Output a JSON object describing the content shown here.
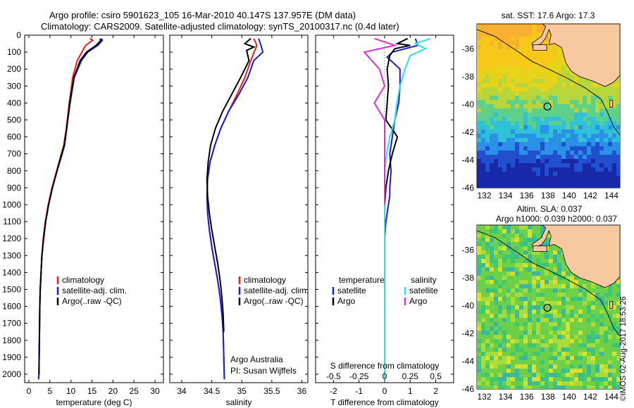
{
  "header": {
    "line1": "Argo profile: csiro 5901623_105 16-Mar-2010 40.147S 137.957E (DM data)",
    "line2": "Climatology: CARS2009. Satellite-adjusted climatology: synTS_20100317.nc (0.4d later)"
  },
  "colors": {
    "climatology": "#e8221a",
    "satellite": "#1a1ad8",
    "argo": "#000000",
    "t_satellite": "#1a1ad8",
    "t_argo": "#000000",
    "s_satellite": "#30e0e0",
    "s_argo": "#e030d0"
  },
  "depth_axis": {
    "ticks": [
      "0",
      "100",
      "200",
      "300",
      "400",
      "500",
      "600",
      "700",
      "800",
      "900",
      "1000",
      "1100",
      "1200",
      "1300",
      "1400",
      "1500",
      "1600",
      "1700",
      "1800",
      "1900",
      "2000"
    ]
  },
  "chart_data": [
    {
      "type": "line",
      "name": "temperature-profile",
      "xlabel": "temperature (deg C)",
      "xlim": [
        -1,
        32
      ],
      "ylim": [
        2050,
        0
      ],
      "xticks": [
        "0",
        "5",
        "10",
        "15",
        "20",
        "25",
        "30"
      ],
      "xtick_values": [
        0,
        5,
        10,
        15,
        20,
        25,
        30
      ],
      "legend": [
        "climatology",
        "satellite-adj. clim.",
        "Argo(..raw -QC)"
      ],
      "legend_position": "lower-middle",
      "series": [
        {
          "name": "climatology",
          "color_key": "climatology",
          "x": [
            14.5,
            15.2,
            13.5,
            12.6,
            11.5,
            10.4,
            9.6,
            8.9,
            8.3,
            7.5,
            6.6,
            5.5,
            4.6,
            3.9,
            3.4,
            3.1,
            2.9,
            2.7,
            2.6,
            2.5,
            2.4,
            2.3
          ],
          "y": [
            20,
            30,
            60,
            100,
            150,
            250,
            400,
            550,
            650,
            720,
            800,
            900,
            1000,
            1100,
            1200,
            1300,
            1400,
            1500,
            1600,
            1800,
            2000,
            2030
          ]
        },
        {
          "name": "satellite-adj. clim.",
          "color_key": "satellite",
          "x": [
            17.3,
            17.5,
            16.4,
            14.0,
            12.5,
            10.8,
            9.8,
            9.0,
            8.5,
            7.7,
            6.7,
            5.6,
            4.7,
            4.0,
            3.5,
            3.1,
            2.9,
            2.7,
            2.6,
            2.5,
            2.4,
            2.3
          ],
          "y": [
            20,
            30,
            60,
            100,
            150,
            250,
            400,
            550,
            650,
            720,
            800,
            900,
            1000,
            1100,
            1200,
            1300,
            1400,
            1500,
            1600,
            1800,
            2000,
            2030
          ]
        },
        {
          "name": "Argo(..raw -QC)",
          "color_key": "argo",
          "x": [
            16.9,
            17.1,
            16.0,
            13.7,
            12.2,
            10.7,
            9.7,
            9.0,
            8.4,
            7.6,
            6.7,
            5.6,
            4.7,
            4.0,
            3.5,
            3.1,
            2.9,
            2.7,
            2.6,
            2.5,
            2.4
          ],
          "y": [
            20,
            30,
            60,
            100,
            150,
            250,
            400,
            550,
            650,
            720,
            800,
            900,
            1000,
            1100,
            1200,
            1300,
            1400,
            1500,
            1600,
            1800,
            2000
          ]
        }
      ]
    },
    {
      "type": "line",
      "name": "salinity-profile",
      "xlabel": "salinity",
      "xlim": [
        33.8,
        36.1
      ],
      "ylim": [
        2050,
        0
      ],
      "xticks": [
        "34",
        "34.5",
        "35",
        "35.5",
        "36"
      ],
      "xtick_values": [
        34,
        34.5,
        35,
        35.5,
        36
      ],
      "legend": [
        "climatology",
        "satellite-adj. clim.",
        "Argo(..raw -QC)"
      ],
      "legend_position": "lower-middle",
      "annotation": [
        "Argo Australia",
        "PI: Susan Wijffels"
      ],
      "series": [
        {
          "name": "climatology",
          "color_key": "climatology",
          "x": [
            35.2,
            35.25,
            35.15,
            35.05,
            34.92,
            34.78,
            34.65,
            34.55,
            34.47,
            34.43,
            34.42,
            34.43,
            34.46,
            34.5,
            34.55,
            34.6,
            34.64,
            34.67,
            34.69,
            34.7,
            34.71
          ],
          "y": [
            20,
            60,
            150,
            250,
            350,
            450,
            550,
            650,
            750,
            850,
            950,
            1050,
            1150,
            1250,
            1350,
            1450,
            1550,
            1650,
            1750,
            1900,
            2030
          ]
        },
        {
          "name": "satellite-adj. clim.",
          "color_key": "satellite",
          "x": [
            35.28,
            35.32,
            35.35,
            35.2,
            35.1,
            34.95,
            34.78,
            34.65,
            34.55,
            34.47,
            34.43,
            34.42,
            34.43,
            34.46,
            34.5,
            34.55,
            34.6,
            34.64,
            34.67,
            34.69,
            34.7,
            34.71
          ],
          "y": [
            20,
            60,
            100,
            150,
            250,
            350,
            450,
            550,
            650,
            750,
            850,
            950,
            1050,
            1150,
            1250,
            1350,
            1450,
            1550,
            1650,
            1750,
            1900,
            2030
          ]
        },
        {
          "name": "Argo(..raw -QC)",
          "color_key": "argo",
          "x": [
            35.15,
            35.05,
            35.2,
            35.08,
            35.12,
            34.98,
            34.83,
            34.68,
            34.56,
            34.48,
            34.44,
            34.42,
            34.43,
            34.46,
            34.5,
            34.55,
            34.6,
            34.64,
            34.67,
            34.69,
            34.7
          ],
          "y": [
            20,
            50,
            70,
            90,
            150,
            250,
            350,
            450,
            550,
            650,
            750,
            850,
            950,
            1050,
            1150,
            1250,
            1350,
            1450,
            1550,
            1650,
            1750
          ]
        }
      ]
    },
    {
      "type": "line",
      "name": "difference-profile",
      "xlabel": "T difference from climatology",
      "top_label": "S difference from climatology",
      "xlim": [
        -2.7,
        2.7
      ],
      "ylim": [
        2050,
        0
      ],
      "t_ticks": [
        "-2",
        "-1",
        "0",
        "1",
        "2"
      ],
      "t_tick_values": [
        -2,
        -1,
        0,
        1,
        2
      ],
      "s_ticks": [
        "-0.5",
        "-0.25",
        "0",
        "0.25",
        "0.5"
      ],
      "s_tick_values": [
        -0.5,
        -0.25,
        0,
        0.25,
        0.5
      ],
      "legend_headers": [
        "temperature",
        "salinity"
      ],
      "legend": [
        "satellite",
        "Argo",
        "satellite",
        "Argo"
      ],
      "series": [
        {
          "name": "temperature satellite",
          "color_key": "t_satellite",
          "x": [
            1.2,
            1.3,
            0.3,
            0.1,
            0.6,
            0.6,
            0.55,
            0.4,
            0.3,
            0.2,
            0.25,
            0.2,
            0.2,
            0.15,
            0.1,
            0.05,
            0,
            0,
            0
          ],
          "y": [
            20,
            60,
            100,
            130,
            200,
            300,
            400,
            500,
            600,
            700,
            800,
            900,
            950,
            1000,
            1050,
            1100,
            1200,
            1500,
            2030
          ]
        },
        {
          "name": "temperature Argo",
          "color_key": "t_argo",
          "x": [
            0.9,
            0.5,
            1.0,
            0.4,
            0.2,
            0.1,
            0.15,
            0.05,
            0.5,
            0.4,
            0.3,
            0.15,
            0.05,
            0,
            0
          ],
          "y": [
            20,
            50,
            60,
            80,
            120,
            200,
            300,
            500,
            600,
            650,
            700,
            800,
            900,
            1000,
            2030
          ]
        },
        {
          "name": "salinity satellite",
          "color_key": "s_satellite",
          "x": [
            0.45,
            0.3,
            0.4,
            0.25,
            0.2,
            0.15,
            0.12,
            0.1,
            0.05,
            0.02,
            0,
            0
          ],
          "y": [
            20,
            50,
            80,
            120,
            200,
            300,
            400,
            500,
            600,
            700,
            800,
            2030
          ]
        },
        {
          "name": "salinity Argo",
          "color_key": "s_argo",
          "x": [
            -0.1,
            0.1,
            -0.2,
            -0.05,
            0,
            -0.1,
            0.0,
            0,
            0
          ],
          "y": [
            20,
            60,
            100,
            200,
            300,
            400,
            500,
            700,
            1000
          ]
        }
      ]
    },
    {
      "type": "heatmap",
      "name": "sst-map",
      "title": "sat. SST: 17.6 Argo: 17.3",
      "xlim": [
        131.3,
        144.8
      ],
      "ylim": [
        -46,
        -34.2
      ],
      "xticks": [
        "132",
        "134",
        "136",
        "138",
        "140",
        "142",
        "144"
      ],
      "xtick_values": [
        132,
        134,
        136,
        138,
        140,
        142,
        144
      ],
      "yticks": [
        "-36",
        "-38",
        "-40",
        "-42",
        "-44",
        "-46"
      ],
      "ytick_values": [
        -36,
        -38,
        -40,
        -42,
        -44,
        -46
      ],
      "marker": {
        "lon": 137.957,
        "lat": -40.147
      }
    },
    {
      "type": "heatmap",
      "name": "sla-map",
      "title": [
        "Altim. SLA: 0.037",
        "Argo h1000: 0.039 h2000: 0.037"
      ],
      "xlim": [
        131.3,
        144.8
      ],
      "ylim": [
        -46,
        -34.2
      ],
      "xticks": [
        "132",
        "134",
        "136",
        "138",
        "140",
        "142",
        "144"
      ],
      "xtick_values": [
        132,
        134,
        136,
        138,
        140,
        142,
        144
      ],
      "yticks": [
        "-36",
        "-38",
        "-40",
        "-42",
        "-44",
        "-46"
      ],
      "ytick_values": [
        -36,
        -38,
        -40,
        -42,
        -44,
        -46
      ],
      "marker": {
        "lon": 137.957,
        "lat": -40.147
      }
    }
  ],
  "credit": "©IMOS 02-Aug-2017 18:53:26"
}
